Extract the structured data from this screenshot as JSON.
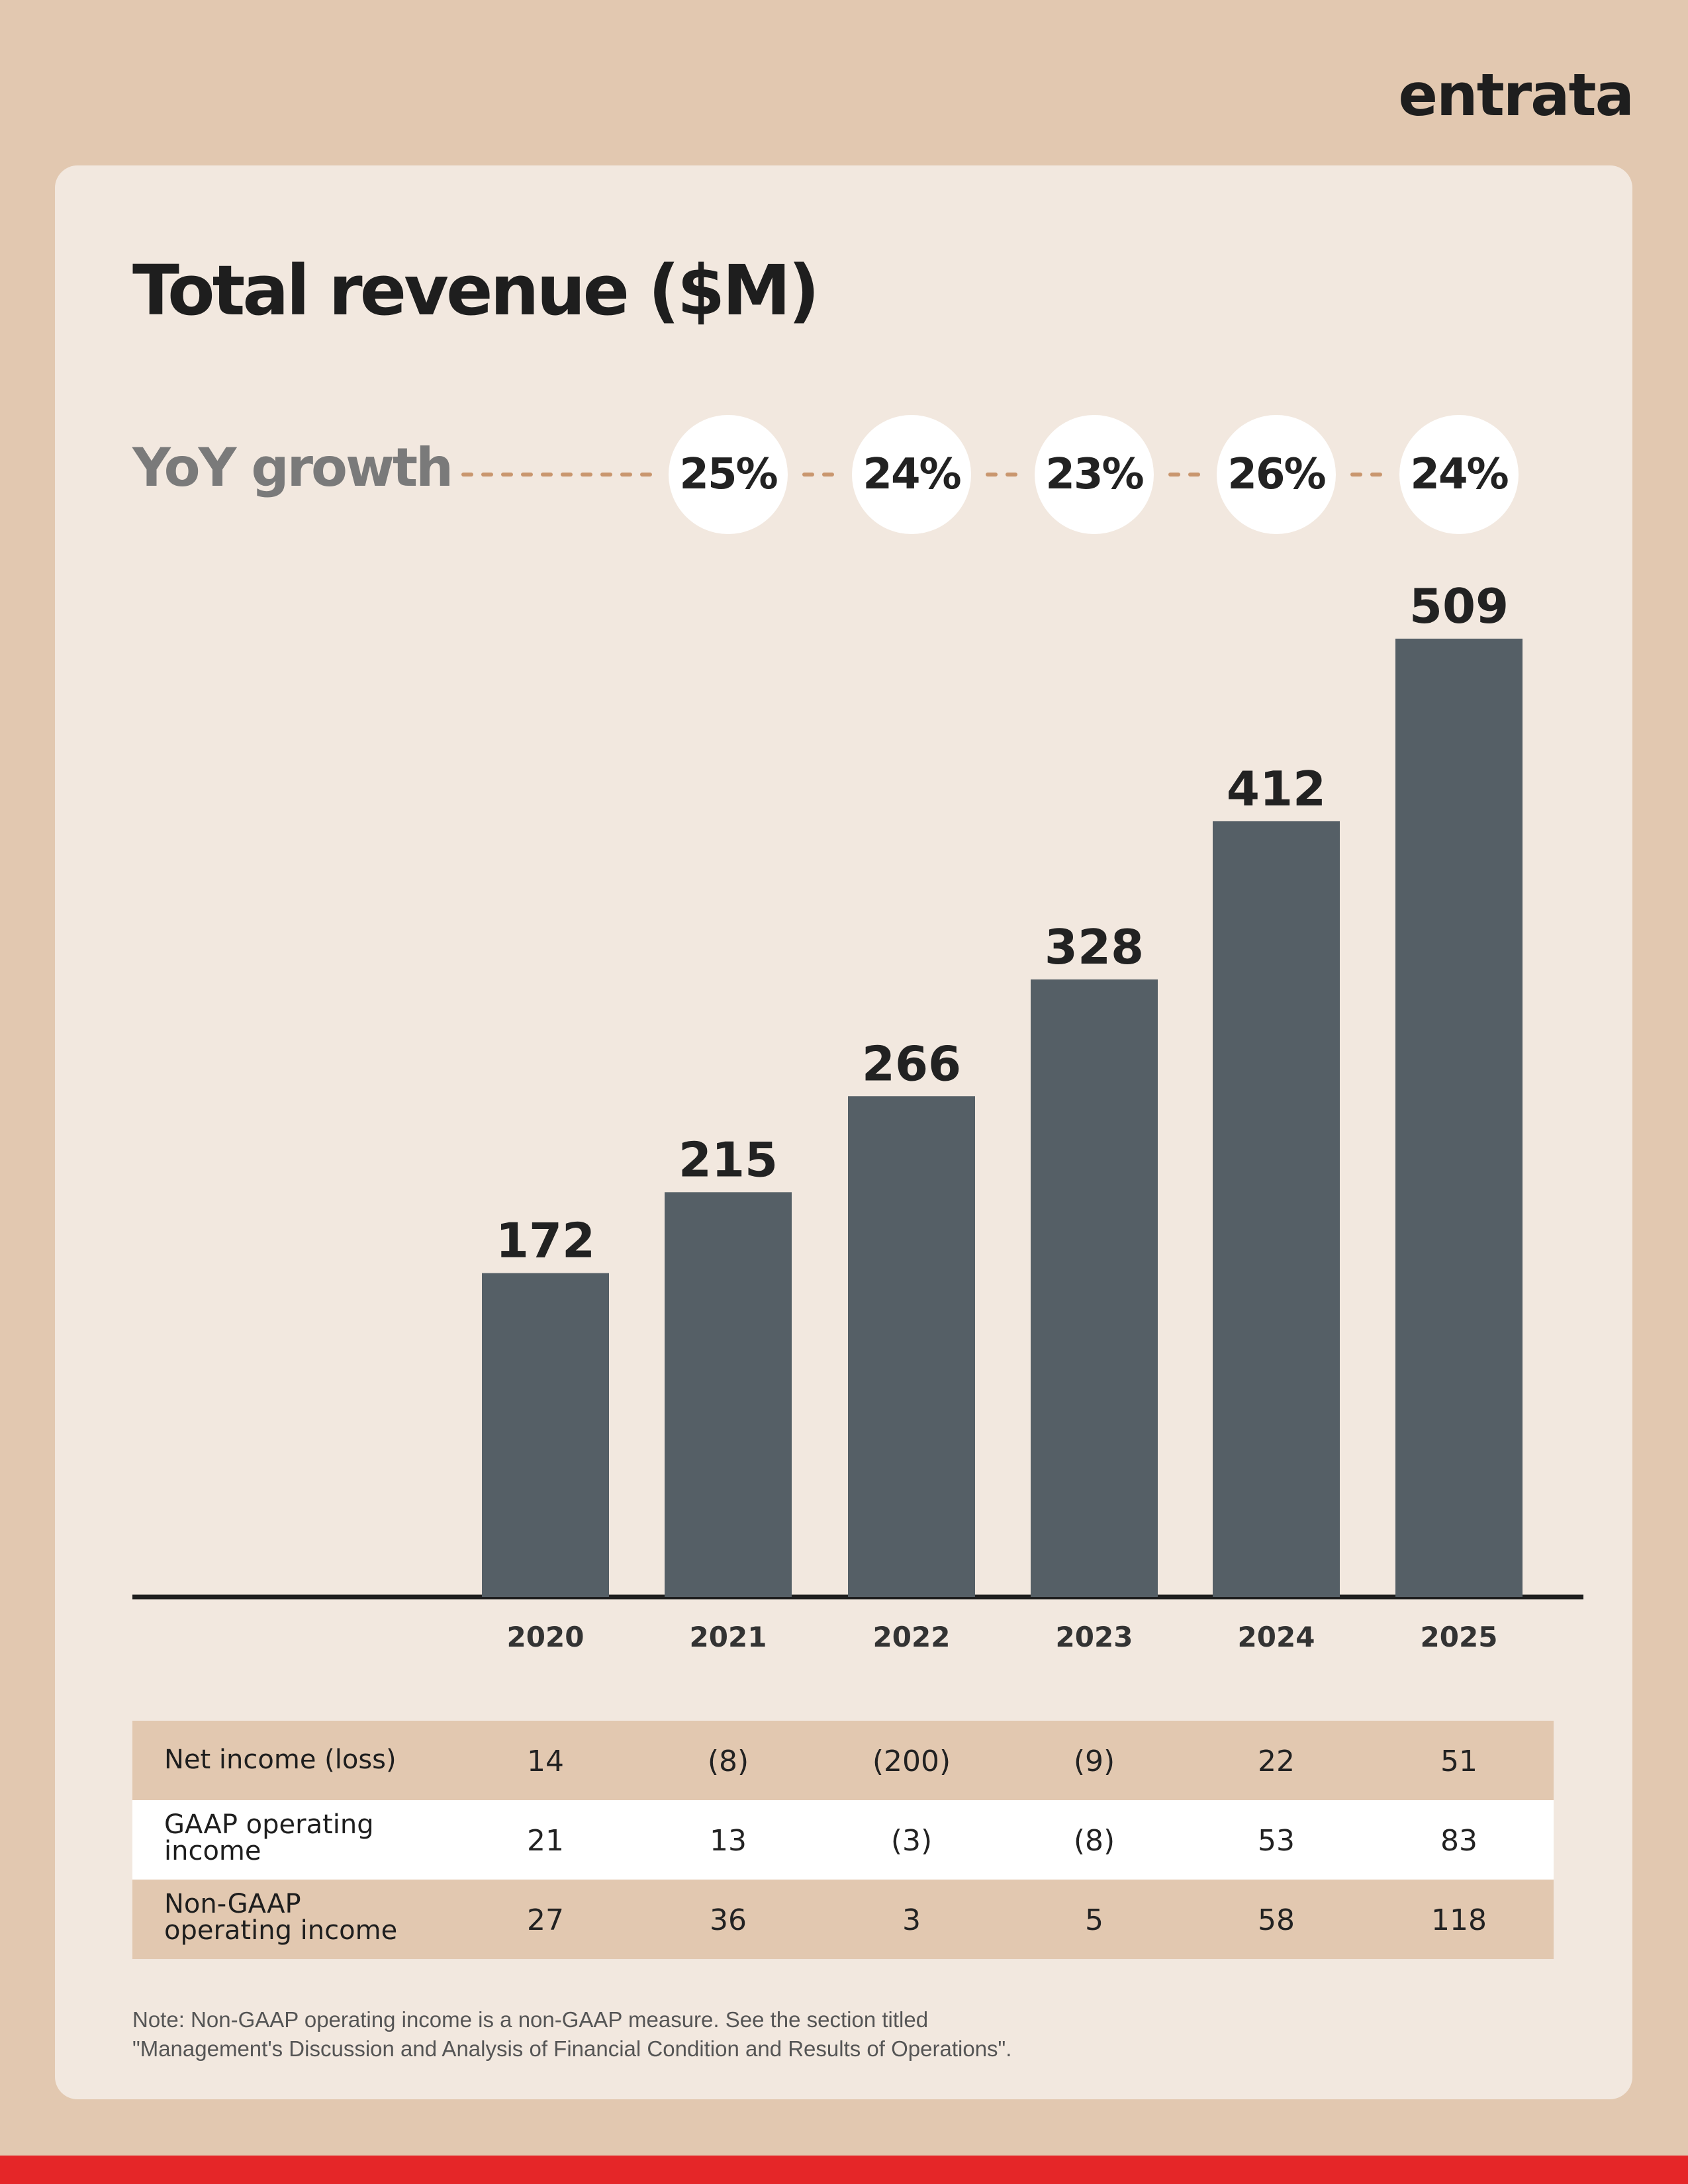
{
  "brand": {
    "logo_text": "entrata",
    "colors": {
      "page_bg": "#E2C8B0",
      "card_bg": "#F2E8DF",
      "bar": "#555F66",
      "dots": "#C9966E",
      "table_shaded": "#E2C8B0",
      "table_white": "#FFFFFF",
      "footer_band": "#E52628"
    }
  },
  "chart_data": {
    "type": "bar",
    "title": "Total revenue ($M)",
    "categories": [
      "2020",
      "2021",
      "2022",
      "2023",
      "2024",
      "2025"
    ],
    "values": [
      172,
      215,
      266,
      328,
      412,
      509
    ],
    "value_labels": [
      "172",
      "215",
      "266",
      "328",
      "412",
      "509"
    ],
    "yoy_growth": {
      "label": "YoY growth",
      "values": [
        "25%",
        "24%",
        "23%",
        "26%",
        "24%"
      ]
    },
    "grid": false
  },
  "table": {
    "rows": [
      {
        "label_lines": [
          "Net income (loss)"
        ],
        "values": [
          "14",
          "(8)",
          "(200)",
          "(9)",
          "22",
          "51"
        ]
      },
      {
        "label_lines": [
          "GAAP operating",
          "income"
        ],
        "values": [
          "21",
          "13",
          "(3)",
          "(8)",
          "53",
          "83"
        ]
      },
      {
        "label_lines": [
          "Non-GAAP",
          "operating income"
        ],
        "values": [
          "27",
          "36",
          "3",
          "5",
          "58",
          "118"
        ]
      }
    ]
  },
  "footnote": {
    "line1": "Note: Non-GAAP operating income is a non-GAAP measure. See the section titled",
    "line2": "\"Management's Discussion and Analysis of Financial Condition and Results of Operations\"."
  }
}
